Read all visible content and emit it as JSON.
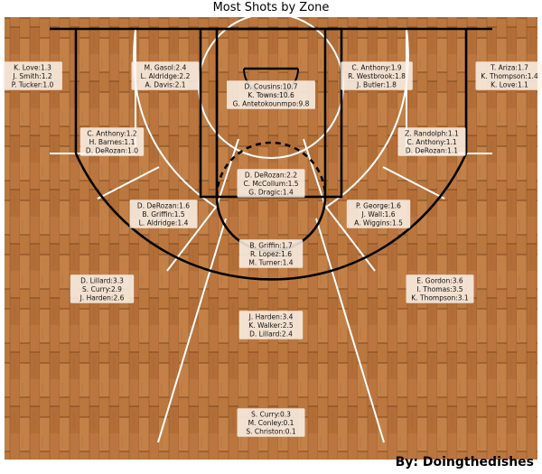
{
  "chart_data": {
    "type": "table",
    "title": "Most Shots by Zone",
    "credit": "By: Doingthedishes",
    "colors": {
      "court_wood": "#b9743d",
      "line_white": "#ffffff",
      "line_black": "#000000"
    },
    "zones": [
      {
        "id": "left-corner-three",
        "players": [
          "K. Love:1.3",
          "J. Smith:1.2",
          "P. Tucker:1.0"
        ]
      },
      {
        "id": "left-baseline-mid",
        "players": [
          "M. Gasol:2.4",
          "L. Aldridge:2.2",
          "A. Davis:2.1"
        ]
      },
      {
        "id": "restricted-area",
        "players": [
          "D. Cousins:10.7",
          "K. Towns:10.6",
          "G. Antetokounmpo:9.8"
        ]
      },
      {
        "id": "right-baseline-mid",
        "players": [
          "C. Anthony:1.9",
          "R. Westbrook:1.8",
          "J. Butler:1.8"
        ]
      },
      {
        "id": "right-corner-three",
        "players": [
          "T. Ariza:1.7",
          "K. Thompson:1.4",
          "K. Love:1.1"
        ]
      },
      {
        "id": "left-short-corner-mid",
        "players": [
          "C. Anthony:1.2",
          "H. Barnes:1.1",
          "D. DeRozan:1.0"
        ]
      },
      {
        "id": "right-short-corner-mid",
        "players": [
          "Z. Randolph:1.1",
          "C. Anthony:1.1",
          "D. DeRozan:1.1"
        ]
      },
      {
        "id": "paint-non-ra",
        "players": [
          "D. DeRozan:2.2",
          "C. McCollum:1.5",
          "G. Dragic:1.4"
        ]
      },
      {
        "id": "left-elbow-mid",
        "players": [
          "D. DeRozan:1.6",
          "B. Griffin:1.5",
          "L. Aldridge:1.4"
        ]
      },
      {
        "id": "right-elbow-mid",
        "players": [
          "P. George:1.6",
          "J. Wall:1.6",
          "A. Wiggins:1.5"
        ]
      },
      {
        "id": "top-key-mid",
        "players": [
          "B. Griffin:1.7",
          "R. Lopez:1.6",
          "M. Turner:1.4"
        ]
      },
      {
        "id": "left-wing-three",
        "players": [
          "D. Lillard:3.3",
          "S. Curry:2.9",
          "J. Harden:2.6"
        ]
      },
      {
        "id": "right-wing-three",
        "players": [
          "E. Gordon:3.6",
          "I. Thomas:3.5",
          "K. Thompson:3.1"
        ]
      },
      {
        "id": "top-key-three",
        "players": [
          "J. Harden:3.4",
          "K. Walker:2.5",
          "D. Lillard:2.4"
        ]
      },
      {
        "id": "backcourt",
        "players": [
          "S. Curry:0.3",
          "M. Conley:0.1",
          "S. Christon:0.1"
        ]
      }
    ]
  }
}
